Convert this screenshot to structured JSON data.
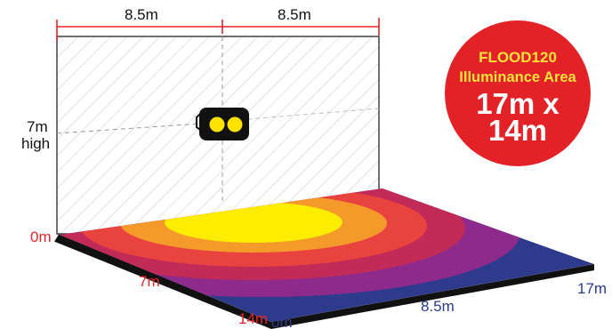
{
  "top_labels": {
    "left": "8.5m",
    "right": "8.5m"
  },
  "height_label": {
    "line1": "7m",
    "line2": "high"
  },
  "floor_labels": {
    "zero_top": "0m",
    "mid_depth": "7m",
    "depth": "14m",
    "zero_bottom": "0m",
    "mid_width": "8.5m",
    "width": "17m"
  },
  "badge": {
    "product": "FLOOD120",
    "subtitle": "Illuminance Area",
    "size_line1": "17m x",
    "size_line2": "14m"
  },
  "colors": {
    "dimension_red": "#e8242a",
    "badge_red": "#e32227",
    "badge_yellow": "#ffe23a",
    "floor_outer": "#2e3a8c",
    "zone_purple": "#8e2a8b",
    "zone_crimson": "#c22a57",
    "zone_red": "#e8433f",
    "zone_orange": "#f39a2a",
    "zone_yellow": "#ffed00",
    "floor_edge": "#111111"
  },
  "icons": {
    "light_fixture": "floodlight-icon"
  }
}
